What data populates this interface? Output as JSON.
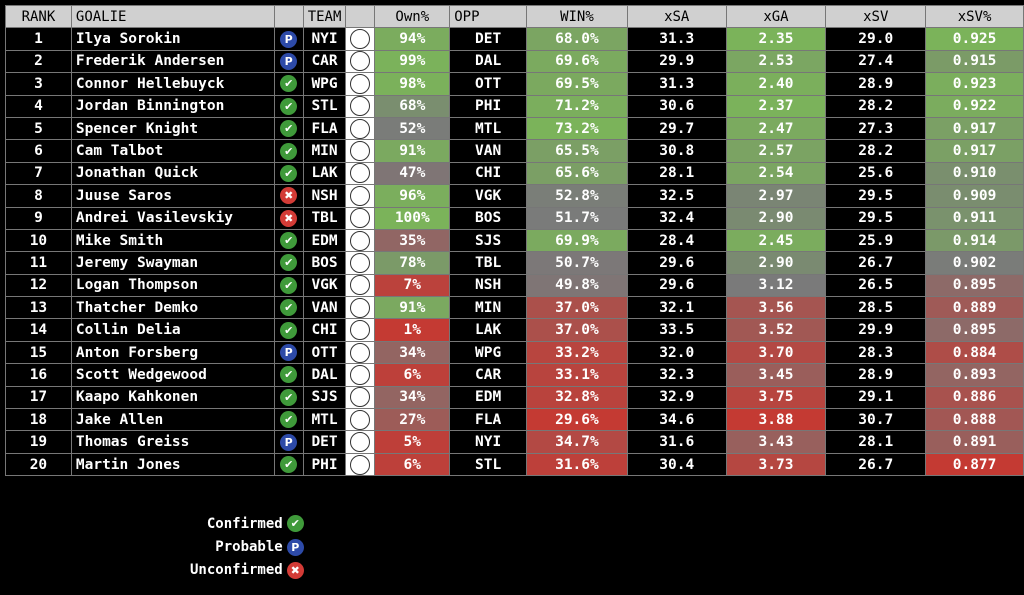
{
  "colors": {
    "green": "#7bb35a",
    "gray": "#7a7a7a",
    "red": "#c43a33",
    "header_bg": "#d0d0d0",
    "confirmed": "#3f9a3a",
    "probable": "#2d4aa8",
    "unconfirmed": "#d33b36"
  },
  "chart_data": {
    "type": "table",
    "columns": [
      "RANK",
      "GOALIE",
      "",
      "TEAM",
      "",
      "Own%",
      "OPP",
      "WIN%",
      "xSA",
      "xGA",
      "xSV",
      "xSV%"
    ],
    "rows": [
      {
        "rank": "1",
        "goalie": "Ilya Sorokin",
        "status": "probable",
        "team": "NYI",
        "own": "94%",
        "opp": "DET",
        "win": "68.0%",
        "xsa": "31.3",
        "xga": "2.35",
        "xsv": "29.0",
        "xsvp": "0.925"
      },
      {
        "rank": "2",
        "goalie": "Frederik Andersen",
        "status": "probable",
        "team": "CAR",
        "own": "99%",
        "opp": "DAL",
        "win": "69.6%",
        "xsa": "29.9",
        "xga": "2.53",
        "xsv": "27.4",
        "xsvp": "0.915"
      },
      {
        "rank": "3",
        "goalie": "Connor Hellebuyck",
        "status": "confirmed",
        "team": "WPG",
        "own": "98%",
        "opp": "OTT",
        "win": "69.5%",
        "xsa": "31.3",
        "xga": "2.40",
        "xsv": "28.9",
        "xsvp": "0.923"
      },
      {
        "rank": "4",
        "goalie": "Jordan Binnington",
        "status": "confirmed",
        "team": "STL",
        "own": "68%",
        "opp": "PHI",
        "win": "71.2%",
        "xsa": "30.6",
        "xga": "2.37",
        "xsv": "28.2",
        "xsvp": "0.922"
      },
      {
        "rank": "5",
        "goalie": "Spencer Knight",
        "status": "confirmed",
        "team": "FLA",
        "own": "52%",
        "opp": "MTL",
        "win": "73.2%",
        "xsa": "29.7",
        "xga": "2.47",
        "xsv": "27.3",
        "xsvp": "0.917"
      },
      {
        "rank": "6",
        "goalie": "Cam Talbot",
        "status": "confirmed",
        "team": "MIN",
        "own": "91%",
        "opp": "VAN",
        "win": "65.5%",
        "xsa": "30.8",
        "xga": "2.57",
        "xsv": "28.2",
        "xsvp": "0.917"
      },
      {
        "rank": "7",
        "goalie": "Jonathan Quick",
        "status": "confirmed",
        "team": "LAK",
        "own": "47%",
        "opp": "CHI",
        "win": "65.6%",
        "xsa": "28.1",
        "xga": "2.54",
        "xsv": "25.6",
        "xsvp": "0.910"
      },
      {
        "rank": "8",
        "goalie": "Juuse Saros",
        "status": "unconfirmed",
        "team": "NSH",
        "own": "96%",
        "opp": "VGK",
        "win": "52.8%",
        "xsa": "32.5",
        "xga": "2.97",
        "xsv": "29.5",
        "xsvp": "0.909"
      },
      {
        "rank": "9",
        "goalie": "Andrei Vasilevskiy",
        "status": "unconfirmed",
        "team": "TBL",
        "own": "100%",
        "opp": "BOS",
        "win": "51.7%",
        "xsa": "32.4",
        "xga": "2.90",
        "xsv": "29.5",
        "xsvp": "0.911"
      },
      {
        "rank": "10",
        "goalie": "Mike Smith",
        "status": "confirmed",
        "team": "EDM",
        "own": "35%",
        "opp": "SJS",
        "win": "69.9%",
        "xsa": "28.4",
        "xga": "2.45",
        "xsv": "25.9",
        "xsvp": "0.914"
      },
      {
        "rank": "11",
        "goalie": "Jeremy Swayman",
        "status": "confirmed",
        "team": "BOS",
        "own": "78%",
        "opp": "TBL",
        "win": "50.7%",
        "xsa": "29.6",
        "xga": "2.90",
        "xsv": "26.7",
        "xsvp": "0.902"
      },
      {
        "rank": "12",
        "goalie": "Logan Thompson",
        "status": "confirmed",
        "team": "VGK",
        "own": "7%",
        "opp": "NSH",
        "win": "49.8%",
        "xsa": "29.6",
        "xga": "3.12",
        "xsv": "26.5",
        "xsvp": "0.895"
      },
      {
        "rank": "13",
        "goalie": "Thatcher Demko",
        "status": "confirmed",
        "team": "VAN",
        "own": "91%",
        "opp": "MIN",
        "win": "37.0%",
        "xsa": "32.1",
        "xga": "3.56",
        "xsv": "28.5",
        "xsvp": "0.889"
      },
      {
        "rank": "14",
        "goalie": "Collin Delia",
        "status": "confirmed",
        "team": "CHI",
        "own": "1%",
        "opp": "LAK",
        "win": "37.0%",
        "xsa": "33.5",
        "xga": "3.52",
        "xsv": "29.9",
        "xsvp": "0.895"
      },
      {
        "rank": "15",
        "goalie": "Anton Forsberg",
        "status": "probable",
        "team": "OTT",
        "own": "34%",
        "opp": "WPG",
        "win": "33.2%",
        "xsa": "32.0",
        "xga": "3.70",
        "xsv": "28.3",
        "xsvp": "0.884"
      },
      {
        "rank": "16",
        "goalie": "Scott Wedgewood",
        "status": "confirmed",
        "team": "DAL",
        "own": "6%",
        "opp": "CAR",
        "win": "33.1%",
        "xsa": "32.3",
        "xga": "3.45",
        "xsv": "28.9",
        "xsvp": "0.893"
      },
      {
        "rank": "17",
        "goalie": "Kaapo Kahkonen",
        "status": "confirmed",
        "team": "SJS",
        "own": "34%",
        "opp": "EDM",
        "win": "32.8%",
        "xsa": "32.9",
        "xga": "3.75",
        "xsv": "29.1",
        "xsvp": "0.886"
      },
      {
        "rank": "18",
        "goalie": "Jake Allen",
        "status": "confirmed",
        "team": "MTL",
        "own": "27%",
        "opp": "FLA",
        "win": "29.6%",
        "xsa": "34.6",
        "xga": "3.88",
        "xsv": "30.7",
        "xsvp": "0.888"
      },
      {
        "rank": "19",
        "goalie": "Thomas Greiss",
        "status": "probable",
        "team": "DET",
        "own": "5%",
        "opp": "NYI",
        "win": "34.7%",
        "xsa": "31.6",
        "xga": "3.43",
        "xsv": "28.1",
        "xsvp": "0.891"
      },
      {
        "rank": "20",
        "goalie": "Martin Jones",
        "status": "confirmed",
        "team": "PHI",
        "own": "6%",
        "opp": "STL",
        "win": "31.6%",
        "xsa": "30.4",
        "xga": "3.73",
        "xsv": "26.7",
        "xsvp": "0.877"
      }
    ]
  },
  "status_icons": {
    "confirmed": "✔",
    "probable": "P",
    "unconfirmed": "✖"
  },
  "legend": [
    {
      "label": "Confirmed",
      "status": "confirmed"
    },
    {
      "label": "Probable",
      "status": "probable"
    },
    {
      "label": "Unconfirmed",
      "status": "unconfirmed"
    }
  ]
}
